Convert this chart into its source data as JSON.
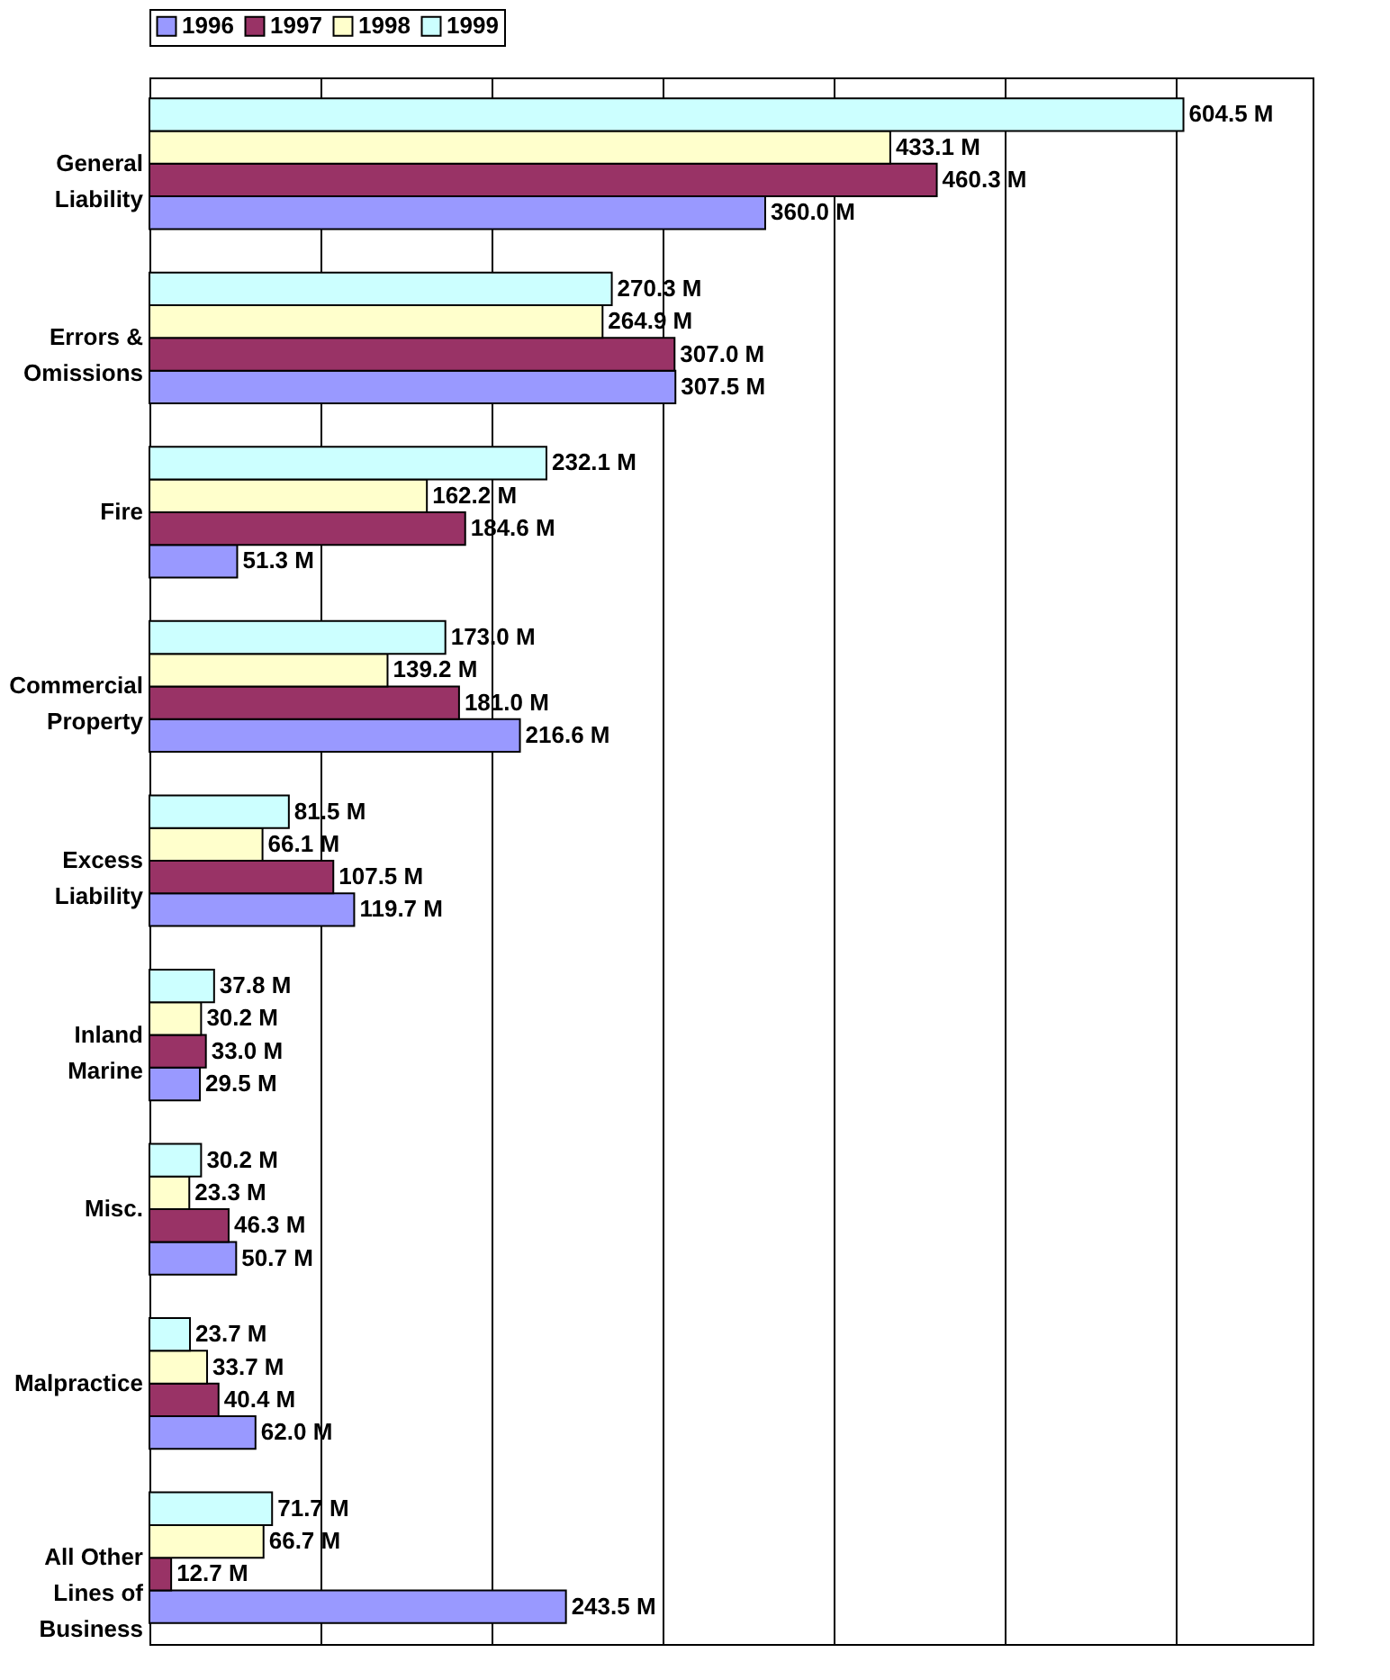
{
  "chart_data": {
    "type": "bar",
    "orientation": "horizontal",
    "categories": [
      "General Liability",
      "Errors & Omissions",
      "Fire",
      "Commercial Property",
      "Excess Liability",
      "Inland Marine",
      "Misc.",
      "Malpractice",
      "All Other Lines of Business"
    ],
    "series": [
      {
        "name": "1996",
        "color": "#9999ff",
        "values": [
          360.0,
          307.5,
          51.3,
          216.6,
          119.7,
          29.5,
          50.7,
          62.0,
          243.5
        ],
        "value_labels": [
          "360.0 M",
          "307.5 M",
          "51.3 M",
          "216.6 M",
          "119.7 M",
          "29.5 M",
          "50.7 M",
          "62.0 M",
          "243.5 M"
        ]
      },
      {
        "name": "1997",
        "color": "#993366",
        "values": [
          460.3,
          307.0,
          184.6,
          181.0,
          107.5,
          33.0,
          46.3,
          40.4,
          12.7
        ],
        "value_labels": [
          "460.3 M",
          "307.0 M",
          "184.6 M",
          "181.0 M",
          "107.5 M",
          "33.0 M",
          "46.3 M",
          "40.4 M",
          "12.7 M"
        ]
      },
      {
        "name": "1998",
        "color": "#ffffcc",
        "values": [
          433.1,
          264.9,
          162.2,
          139.2,
          66.1,
          30.2,
          23.3,
          33.7,
          66.7
        ],
        "value_labels": [
          "433.1 M",
          "264.9 M",
          "162.2 M",
          "139.2 M",
          "66.1 M",
          "30.2 M",
          "23.3 M",
          "33.7 M",
          "66.7 M"
        ]
      },
      {
        "name": "1999",
        "color": "#ccffff",
        "values": [
          604.5,
          270.3,
          232.1,
          173.0,
          81.5,
          37.8,
          30.2,
          23.7,
          71.7
        ],
        "value_labels": [
          "604.5 M",
          "270.3 M",
          "232.1 M",
          "173.0 M",
          "81.5 M",
          "37.8 M",
          "30.2 M",
          "23.7 M",
          "71.7 M"
        ]
      }
    ],
    "xlim": [
      0,
      680
    ],
    "xticks": [
      {
        "value": 0,
        "label": null
      },
      {
        "value": 100,
        "label": null
      },
      {
        "value": 200,
        "label": null
      },
      {
        "value": 300,
        "label": null
      },
      {
        "value": 400,
        "label": null
      },
      {
        "value": 500,
        "label": null
      },
      {
        "value": 600,
        "label": null
      }
    ],
    "tick_labels": "y",
    "grid": "x",
    "legend": "top"
  }
}
